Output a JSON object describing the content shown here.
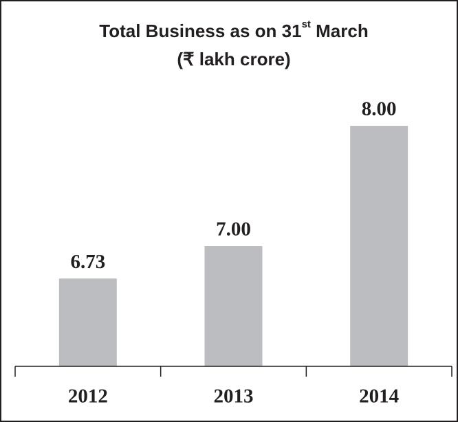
{
  "chart_data": {
    "type": "bar",
    "title": [
      "Total Business as on 31",
      "st",
      " March"
    ],
    "subtitle": "(₹ lakh crore)",
    "categories": [
      "2012",
      "2013",
      "2014"
    ],
    "values": [
      6.73,
      7.0,
      8.0
    ],
    "value_labels": [
      "6.73",
      "7.00",
      "8.00"
    ],
    "color": "#bcbdc0",
    "ylim": [
      6,
      8.4
    ]
  }
}
